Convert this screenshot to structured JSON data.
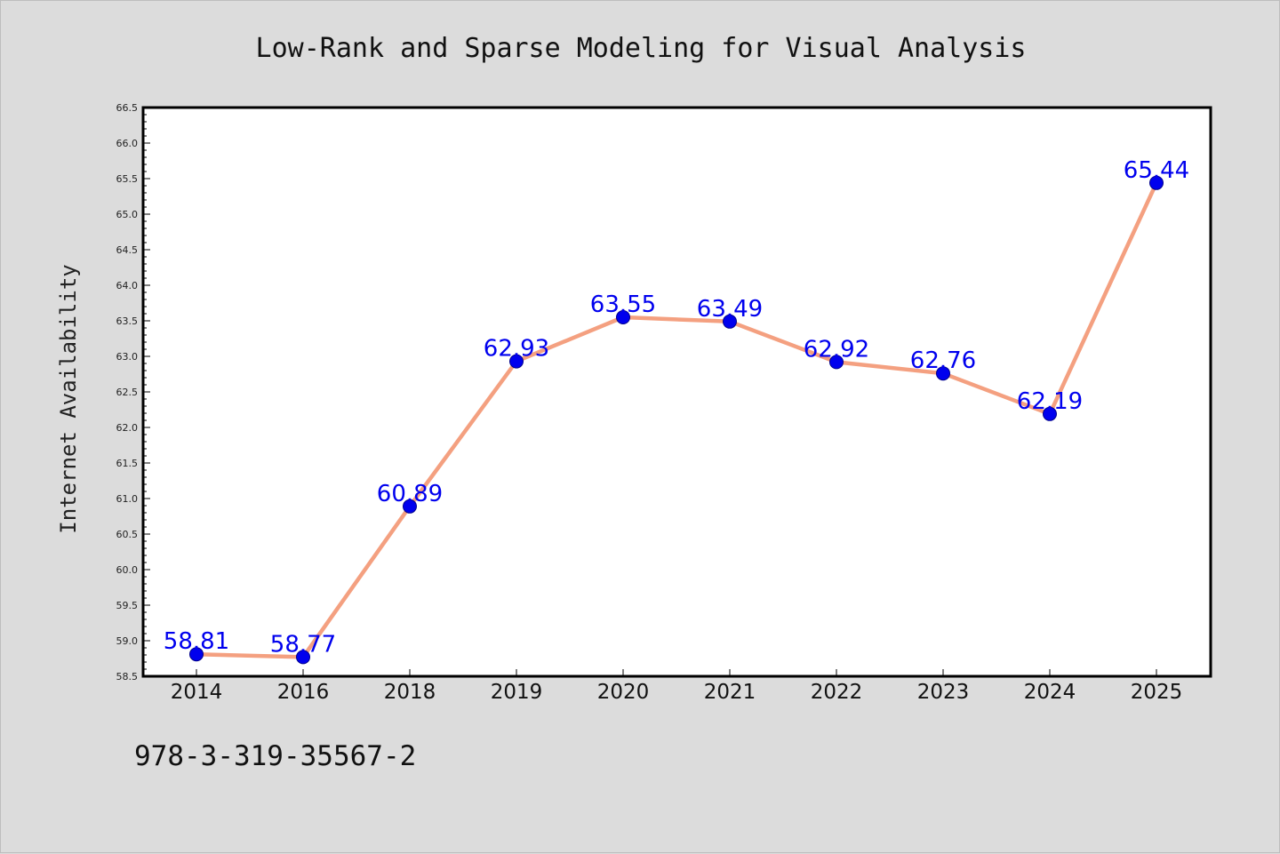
{
  "chart_data": {
    "type": "line",
    "title": "Low-Rank and Sparse Modeling for Visual Analysis",
    "xlabel": "",
    "ylabel": "Internet Availability",
    "categories": [
      "2014",
      "2016",
      "2018",
      "2019",
      "2020",
      "2021",
      "2022",
      "2023",
      "2024",
      "2025"
    ],
    "series": [
      {
        "values": [
          58.81,
          58.77,
          60.89,
          62.93,
          63.55,
          63.49,
          62.92,
          62.76,
          62.19,
          65.44
        ],
        "labels": [
          "58.81",
          "58.77",
          "60.89",
          "62.93",
          "63.55",
          "63.49",
          "62.92",
          "62.76",
          "62.19",
          "65.44"
        ],
        "line_color": "#f4a080",
        "marker_color": "#0000ee"
      }
    ],
    "ylim": [
      58.5,
      66.5
    ],
    "yticks": [
      "58.5",
      "59.0",
      "59.5",
      "60.0",
      "60.5",
      "61.0",
      "61.5",
      "62.0",
      "62.5",
      "63.0",
      "63.5",
      "64.0",
      "64.5",
      "65.0",
      "65.5",
      "66.0",
      "66.5"
    ],
    "grid": false,
    "legend": "none"
  },
  "footer": {
    "isbn": "978-3-319-35567-2"
  }
}
